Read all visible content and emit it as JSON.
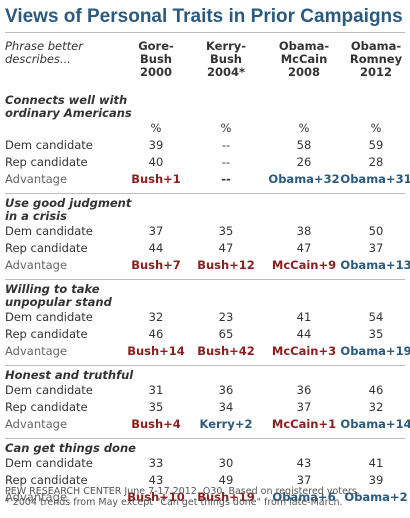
{
  "title": "Views of Personal Traits in Prior Campaigns",
  "header": {
    "phrase_label": [
      "Phrase better",
      "describes..."
    ],
    "columns": [
      {
        "line1": "Gore-",
        "line2": "Bush",
        "line3": "2000"
      },
      {
        "line1": "Kerry-",
        "line2": "Bush",
        "line3": "2004*"
      },
      {
        "line1": "Obama-",
        "line2": "McCain",
        "line3": "2008"
      },
      {
        "line1": "Obama-",
        "line2": "Romney",
        "line3": "2012"
      }
    ]
  },
  "chart_data": {
    "type": "table",
    "row_labels": [
      "Dem candidate",
      "Rep candidate",
      "Advantage"
    ],
    "sections": [
      {
        "title_lines": [
          "Connects well with",
          "ordinary Americans"
        ],
        "unit_row": [
          "%",
          "%",
          "%",
          "%"
        ],
        "dem": [
          "39",
          "--",
          "58",
          "59"
        ],
        "rep": [
          "40",
          "--",
          "26",
          "28"
        ],
        "advantage": [
          "Bush+1",
          "--",
          "Obama+32",
          "Obama+31"
        ]
      },
      {
        "title_lines": [
          "Use good judgment",
          "in a crisis"
        ],
        "dem": [
          "37",
          "35",
          "38",
          "50"
        ],
        "rep": [
          "44",
          "47",
          "47",
          "37"
        ],
        "advantage": [
          "Bush+7",
          "Bush+12",
          "McCain+9",
          "Obama+13"
        ]
      },
      {
        "title_lines": [
          "Willing to take",
          "unpopular stand"
        ],
        "dem": [
          "32",
          "23",
          "41",
          "54"
        ],
        "rep": [
          "46",
          "65",
          "44",
          "35"
        ],
        "advantage": [
          "Bush+14",
          "Bush+42",
          "McCain+3",
          "Obama+19"
        ]
      },
      {
        "title_lines": [
          "Honest and truthful"
        ],
        "dem": [
          "31",
          "36",
          "36",
          "46"
        ],
        "rep": [
          "35",
          "34",
          "37",
          "32"
        ],
        "advantage": [
          "Bush+4",
          "Kerry+2",
          "McCain+1",
          "Obama+14"
        ]
      },
      {
        "title_lines": [
          "Can get things done"
        ],
        "dem": [
          "33",
          "30",
          "43",
          "41"
        ],
        "rep": [
          "43",
          "49",
          "37",
          "39"
        ],
        "advantage": [
          "Bush+10",
          "Bush+19",
          "Obama+6",
          "Obama+2"
        ]
      }
    ]
  },
  "colors": {
    "title": "#2b5a7e",
    "rep_advantage": "#8b2020",
    "dem_advantage": "#2b5a7e"
  },
  "footnote": [
    "PEW RESEARCH CENTER June 7-17 2012. Q30. Based on registered voters.",
    "* 2004 trends from May except \"Can get things done\" from late-March."
  ]
}
